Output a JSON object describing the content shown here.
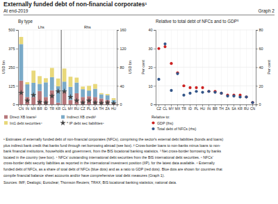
{
  "title": "Externally funded debt of non-financial corporates¹",
  "subtitle": "At end-2019",
  "graph_label": "Graph 2",
  "footnotes": [
    "¹ Estimates of externally funded debt of non-financial corporates (NFCs), comprising the sector's external debt liabilities (bonds and loans)",
    "plus indirect bank credit that banks fund through net borrowing abroad (see box).  ² Cross-border loans to non-banks minus loans to non-",
    "bank financial institutions, households and government, from the BIS locational banking statistics.  ³ Net cross-border borrowing by banks",
    "located in the country (see box).  ⁴ NFCs' outstanding international debt securities from the BIS international debt securities.  ⁵ NFCs'",
    "cross-border debt security liabilities as reported in the international investment position (IIP), for the latest data available.  ⁶ Externally",
    "funded debt of NFCs, as a share of total debt of NFCs (blue dots) and as a ratio to GDP (red dots). Blue dots are shown for countries that",
    "compile financial balance sheet accounts and/or have comprehensive total debt measures (Graph 1)."
  ],
  "sources": "Sources: IMF; Dealogic; Euroclear; Thomson Reuters; TRAX; BIS locational banking statistics; national data.",
  "chart_data": [
    {
      "type": "bar",
      "stacked": true,
      "title": "By type",
      "ylabel": "USD bn",
      "y2label": "USD bn",
      "categories": [
        "CN",
        "IN",
        "MX",
        "BR",
        "ID",
        "TR",
        "KR",
        "CL",
        "MY",
        "RU",
        "CZ",
        "PL",
        "SA",
        "TH",
        "ZA",
        "HU"
      ],
      "ylim": [
        0,
        500
      ],
      "yticks": [
        0,
        125,
        250,
        375,
        500
      ],
      "y2lim": [
        0,
        160
      ],
      "y2ticks": [
        0,
        40,
        80,
        120,
        160
      ],
      "grid": true,
      "legend": "bottom",
      "vline": 6.5,
      "annotations": [
        "Lhs",
        "Rhs"
      ],
      "series": [
        {
          "name": "Direct XB loans²",
          "color": "#b5767a",
          "values": [
            160,
            50,
            50,
            90,
            50,
            95,
            12,
            85,
            30,
            75,
            50,
            55,
            50,
            40,
            30,
            8
          ]
        },
        {
          "name": "Indirect XB credit³",
          "color": "#7aaac8",
          "values": [
            245,
            85,
            95,
            48,
            98,
            88,
            110,
            68,
            88,
            72,
            52,
            38,
            55,
            28,
            32,
            22
          ]
        },
        {
          "name": "Int1 debt securities⁴",
          "color": "#e8d87a",
          "values": [
            48,
            14,
            82,
            52,
            28,
            62,
            52,
            88,
            68,
            33,
            18,
            32,
            32,
            8,
            8,
            12
          ]
        },
        {
          "name": "* IP debt sec liabilities⁵",
          "type": "scatter",
          "marker": "star",
          "axis": "y2",
          "color": "#444444",
          "values": [
            25,
            8,
            20,
            5,
            4,
            18,
            28,
            28,
            16,
            8,
            4,
            8,
            4,
            3,
            4,
            2
          ]
        }
      ]
    },
    {
      "type": "scatter",
      "title": "Relative to total debt of NFCs and to GDP⁵",
      "ylabel": "Per cent",
      "y2label": "Per cent",
      "categories": [
        "CZ",
        "CL",
        "MY",
        "MX",
        "TR",
        "ID",
        "PL",
        "HU",
        "IN",
        "BR",
        "TH",
        "ZA",
        "SA",
        "KR",
        "RU",
        "CN"
      ],
      "ylim": [
        0,
        40
      ],
      "yticks": [
        0,
        10,
        20,
        30,
        40
      ],
      "y2lim": [
        0,
        80
      ],
      "y2ticks": [
        0,
        20,
        40,
        60,
        80
      ],
      "grid": true,
      "legend": "bottom",
      "legend_title": "Relative to:",
      "series": [
        {
          "name": "GDP (lhs)",
          "color": "#cc2222",
          "marker": "circle",
          "values": [
            30,
            31,
            22,
            17,
            10,
            9,
            9,
            9,
            7,
            7,
            6,
            5,
            5,
            5,
            4,
            1
          ]
        },
        {
          "name": "Total debt of NFCs (rhs)",
          "color": "#335588",
          "marker": "circle",
          "axis": "y2",
          "values": [
            27,
            65,
            15,
            33,
            10,
            12,
            14,
            13,
            14,
            13,
            12,
            9,
            9,
            8,
            8,
            2
          ]
        }
      ]
    }
  ]
}
